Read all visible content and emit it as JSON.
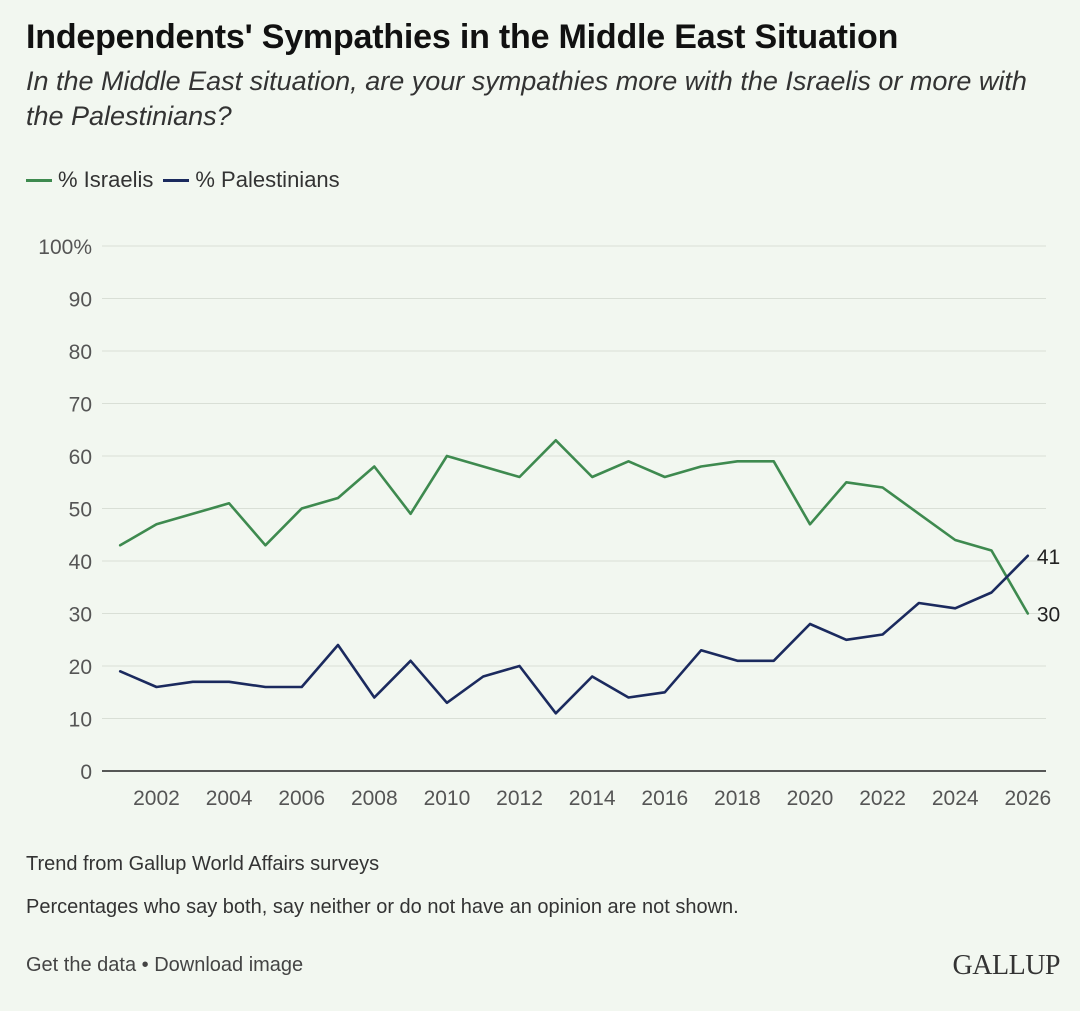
{
  "title": "Independents' Sympathies in the Middle East Situation",
  "subtitle": "In the Middle East situation, are your sympathies more with the Israelis or more with the Palestinians?",
  "colors": {
    "israelis": "#3e8a4f",
    "palestinians": "#1b2a5e",
    "grid": "#d9dfd6"
  },
  "notes": {
    "trend": "Trend from Gallup World Affairs surveys",
    "percentages": "Percentages who say both, say neither or do not have an opinion are not shown."
  },
  "footer": {
    "get_data": "Get the data",
    "separator": " • ",
    "download": "Download image",
    "logo": "GALLUP"
  },
  "chart_data": {
    "type": "line",
    "title": "Independents' Sympathies in the Middle East Situation",
    "xlabel": "",
    "ylabel": "",
    "x": [
      2001,
      2002,
      2003,
      2004,
      2005,
      2006,
      2007,
      2008,
      2009,
      2010,
      2011,
      2012,
      2013,
      2014,
      2015,
      2016,
      2017,
      2018,
      2019,
      2020,
      2021,
      2022,
      2023,
      2024,
      2025,
      2026
    ],
    "xlim": [
      2000.5,
      2026.5
    ],
    "ylim": [
      0,
      100
    ],
    "yticks": [
      0,
      10,
      20,
      30,
      40,
      50,
      60,
      70,
      80,
      90,
      100
    ],
    "ytick_labels": [
      "0",
      "10",
      "20",
      "30",
      "40",
      "50",
      "60",
      "70",
      "80",
      "90",
      "100%"
    ],
    "xticks": [
      2002,
      2004,
      2006,
      2008,
      2010,
      2012,
      2014,
      2016,
      2018,
      2020,
      2022,
      2024,
      2026
    ],
    "xtick_labels": [
      "2002",
      "2004",
      "2006",
      "2008",
      "2010",
      "2012",
      "2014",
      "2016",
      "2018",
      "2020",
      "2022",
      "2024",
      "2026"
    ],
    "legend_position": "top-left",
    "grid": true,
    "series": [
      {
        "name": "% Israelis",
        "key": "israelis",
        "values": [
          43,
          47,
          49,
          51,
          43,
          50,
          52,
          58,
          49,
          60,
          58,
          56,
          63,
          56,
          59,
          56,
          58,
          59,
          59,
          47,
          55,
          54,
          49,
          44,
          42,
          30
        ],
        "end_label": "30"
      },
      {
        "name": "% Palestinians",
        "key": "palestinians",
        "values": [
          19,
          16,
          17,
          17,
          16,
          16,
          24,
          14,
          21,
          13,
          18,
          20,
          11,
          18,
          14,
          15,
          23,
          21,
          21,
          28,
          25,
          26,
          32,
          31,
          34,
          41
        ],
        "end_label": "41"
      }
    ]
  }
}
